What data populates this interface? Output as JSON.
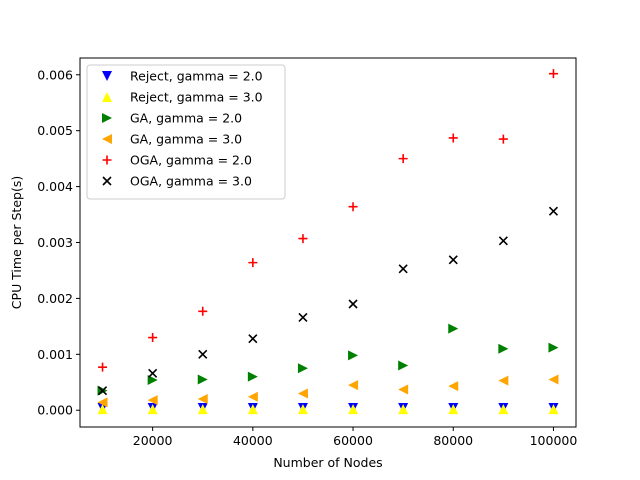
{
  "chart_data": {
    "type": "scatter",
    "title": "",
    "xlabel": "Number of Nodes",
    "ylabel": "CPU Time per Step(s)",
    "xlim": [
      5500,
      104500
    ],
    "ylim": [
      -0.0003,
      0.0063
    ],
    "xticks": [
      20000,
      40000,
      60000,
      80000,
      100000
    ],
    "xtick_labels": [
      "20000",
      "40000",
      "60000",
      "80000",
      "100000"
    ],
    "yticks": [
      0,
      0.001,
      0.002,
      0.003,
      0.004,
      0.005,
      0.006
    ],
    "ytick_labels": [
      "0.000",
      "0.001",
      "0.002",
      "0.003",
      "0.004",
      "0.005",
      "0.006"
    ],
    "grid": false,
    "legend_position": "upper-left",
    "x": [
      10000,
      20000,
      30000,
      40000,
      50000,
      60000,
      70000,
      80000,
      90000,
      100000
    ],
    "series": [
      {
        "name": "Reject, gamma = 2.0",
        "marker": "triangle-down",
        "color": "#0000ff",
        "values": [
          4e-05,
          4e-05,
          4e-05,
          4e-05,
          4e-05,
          4e-05,
          4e-05,
          4e-05,
          4e-05,
          4e-05
        ]
      },
      {
        "name": "Reject, gamma = 3.0",
        "marker": "triangle-up",
        "color": "#ffff00",
        "values": [
          2e-05,
          2e-05,
          2e-05,
          2e-05,
          2e-05,
          2e-05,
          2e-05,
          2e-05,
          2e-05,
          2e-05
        ]
      },
      {
        "name": "GA, gamma = 2.0",
        "marker": "triangle-right",
        "color": "#008000",
        "values": [
          0.00035,
          0.00054,
          0.00055,
          0.0006,
          0.00075,
          0.00098,
          0.0008,
          0.00146,
          0.0011,
          0.00112
        ]
      },
      {
        "name": "GA, gamma = 3.0",
        "marker": "triangle-left",
        "color": "#ffa500",
        "values": [
          0.00014,
          0.00018,
          0.0002,
          0.00024,
          0.0003,
          0.00045,
          0.00037,
          0.00043,
          0.00053,
          0.00055
        ]
      },
      {
        "name": "OGA, gamma = 2.0",
        "marker": "plus",
        "color": "#ff0000",
        "values": [
          0.00077,
          0.0013,
          0.00177,
          0.00264,
          0.00307,
          0.00364,
          0.0045,
          0.00487,
          0.00485,
          0.00602
        ]
      },
      {
        "name": "OGA, gamma = 3.0",
        "marker": "x",
        "color": "#000000",
        "values": [
          0.00035,
          0.00066,
          0.001,
          0.00128,
          0.00166,
          0.0019,
          0.00253,
          0.00269,
          0.00303,
          0.00356
        ]
      }
    ]
  }
}
